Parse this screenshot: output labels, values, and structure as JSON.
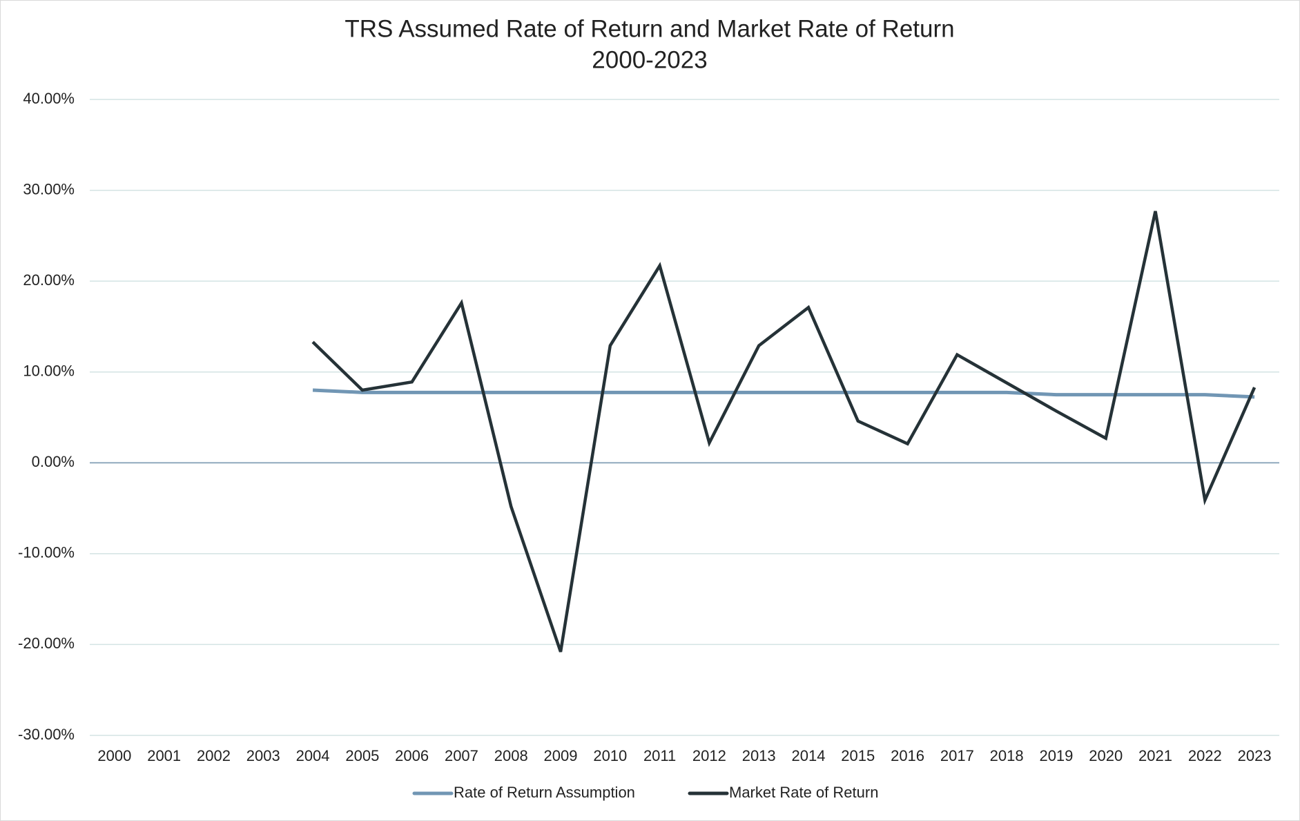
{
  "chart_data": {
    "type": "line",
    "title": "TRS Assumed Rate of Return and Market Rate of Return",
    "subtitle": "2000-2023",
    "categories": [
      "2000",
      "2001",
      "2002",
      "2003",
      "2004",
      "2005",
      "2006",
      "2007",
      "2008",
      "2009",
      "2010",
      "2011",
      "2012",
      "2013",
      "2014",
      "2015",
      "2016",
      "2017",
      "2018",
      "2019",
      "2020",
      "2021",
      "2022",
      "2023"
    ],
    "series": [
      {
        "name": "Rate of Return Assumption",
        "color": "#7196b4",
        "values": [
          null,
          null,
          null,
          null,
          8.0,
          7.75,
          7.75,
          7.75,
          7.75,
          7.75,
          7.75,
          7.75,
          7.75,
          7.75,
          7.75,
          7.75,
          7.75,
          7.75,
          7.75,
          7.5,
          7.5,
          7.5,
          7.5,
          7.25
        ]
      },
      {
        "name": "Market Rate of Return",
        "color": "#253237",
        "values": [
          null,
          null,
          null,
          null,
          13.3,
          8.0,
          8.9,
          17.6,
          -4.8,
          -20.8,
          12.9,
          21.7,
          2.2,
          12.9,
          17.1,
          4.6,
          2.1,
          11.9,
          8.8,
          5.7,
          2.7,
          27.7,
          -4.1,
          8.3
        ]
      }
    ],
    "ylim": [
      -30,
      40
    ],
    "yticks": [
      {
        "value": 40,
        "label": "40.00%"
      },
      {
        "value": 30,
        "label": "30.00%"
      },
      {
        "value": 20,
        "label": "20.00%"
      },
      {
        "value": 10,
        "label": "10.00%"
      },
      {
        "value": 0,
        "label": "0.00%"
      },
      {
        "value": -10,
        "label": "-10.00%"
      },
      {
        "value": -20,
        "label": "-20.00%"
      },
      {
        "value": -30,
        "label": "-30.00%"
      }
    ],
    "grid": true,
    "legend": "bottom"
  }
}
